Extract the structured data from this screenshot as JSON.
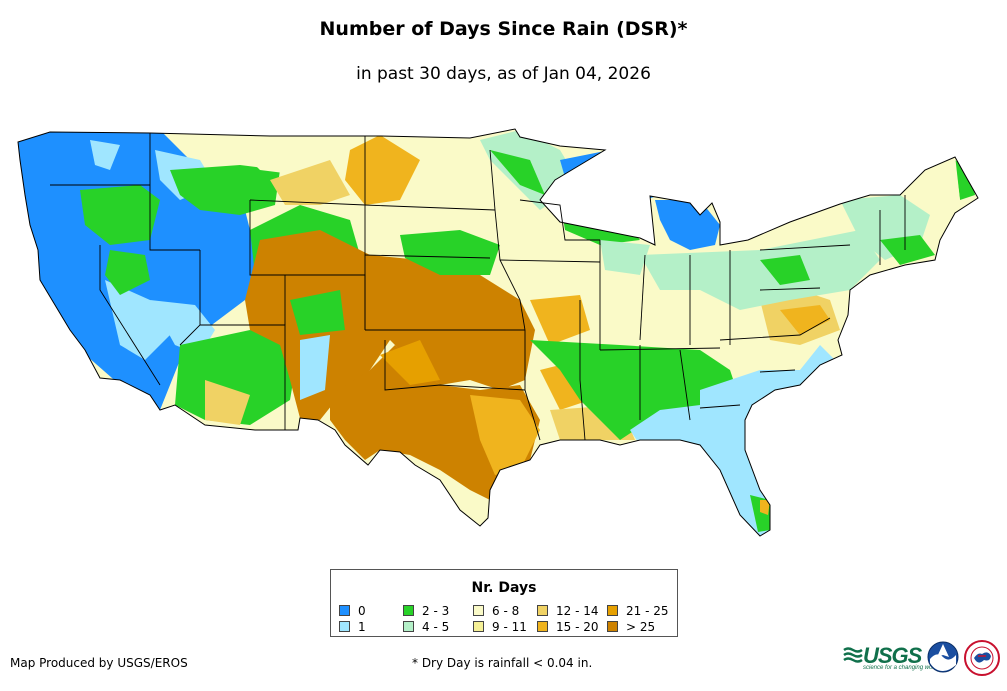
{
  "title": "Number of Days Since Rain (DSR)*",
  "subtitle": "in past 30 days, as of Jan 04, 2026",
  "legend": {
    "title": "Nr. Days",
    "items": [
      {
        "label": "0",
        "color": "#1e90ff"
      },
      {
        "label": "1",
        "color": "#a0e6ff"
      },
      {
        "label": "2 - 3",
        "color": "#28d228"
      },
      {
        "label": "4 - 5",
        "color": "#b4f0c8"
      },
      {
        "label": "6 - 8",
        "color": "#fafac8"
      },
      {
        "label": "9 - 11",
        "color": "#f5f096"
      },
      {
        "label": "12 - 14",
        "color": "#f0d264"
      },
      {
        "label": "15 - 20",
        "color": "#f0b41e"
      },
      {
        "label": "21 - 25",
        "color": "#e6a000"
      },
      {
        "label": "> 25",
        "color": "#cd8200"
      }
    ]
  },
  "credit": "Map Produced by USGS/EROS",
  "footnote": "* Dry Day is rainfall < 0.04 in.",
  "logos": {
    "usgs": "USGS",
    "usgs_tagline": "science for a changing world"
  }
}
